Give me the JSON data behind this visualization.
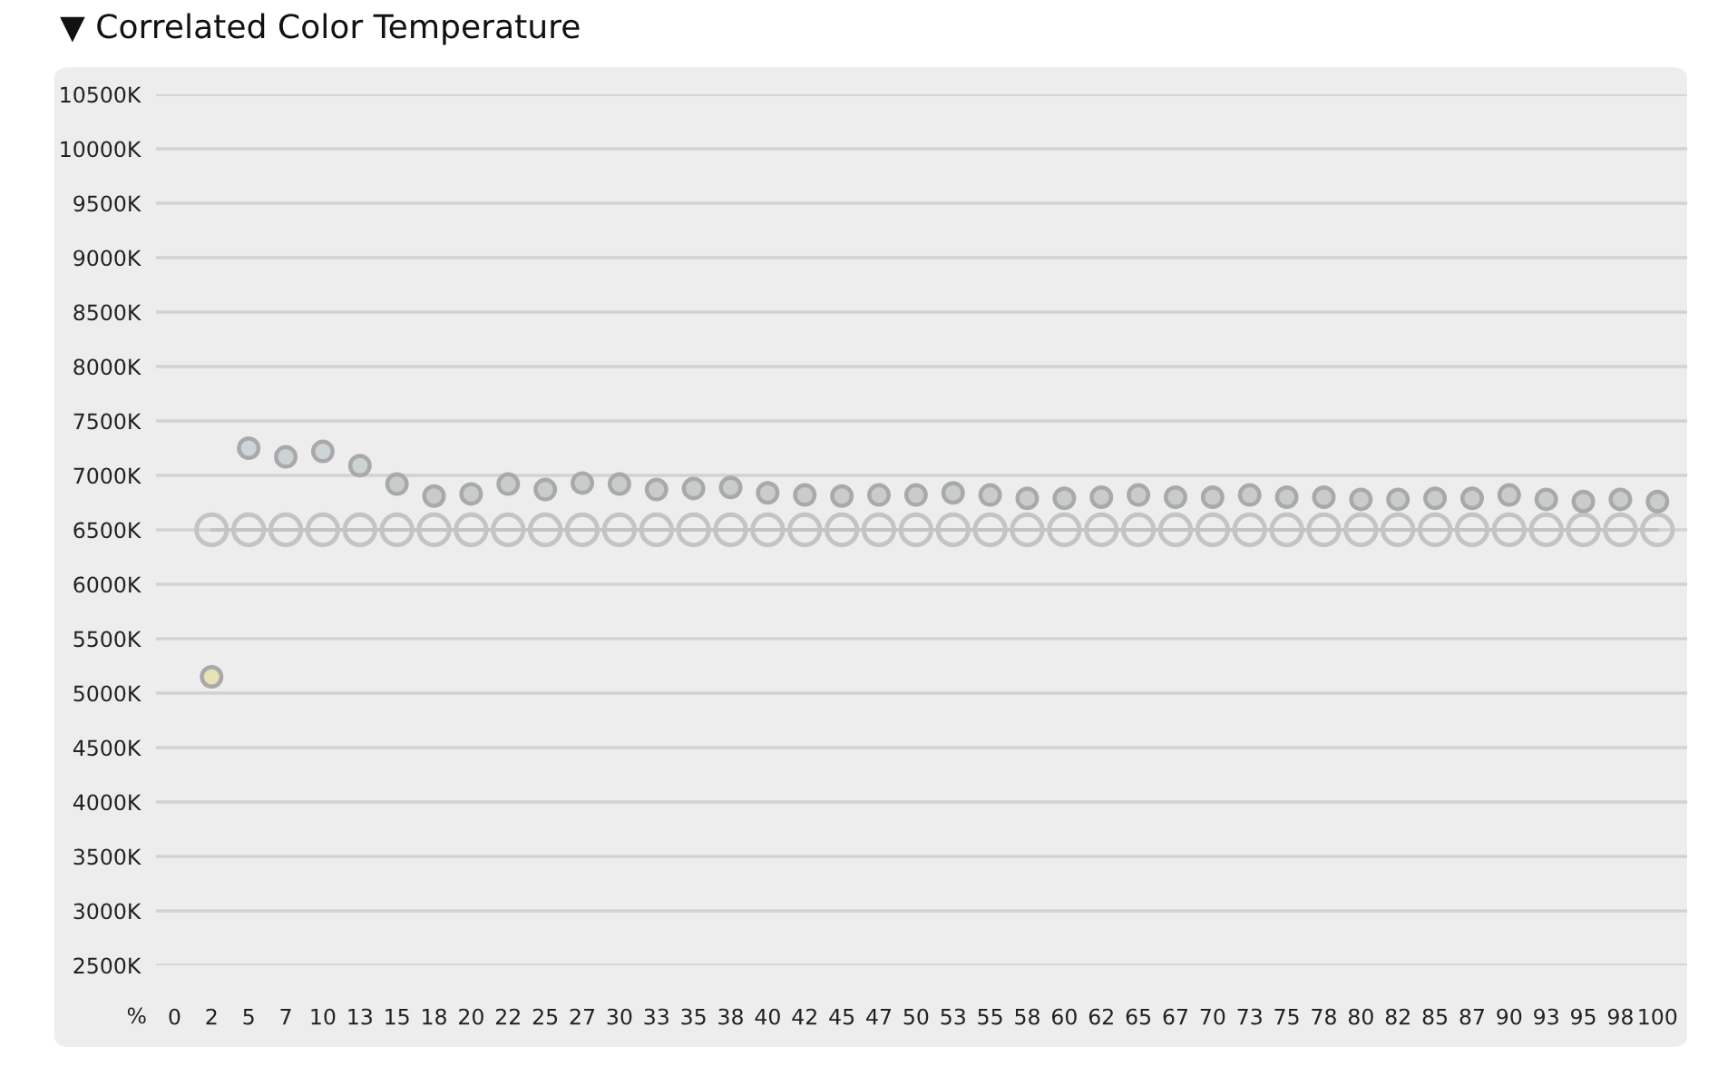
{
  "chart_data": {
    "type": "scatter",
    "title": "▼ Correlated Color Temperature",
    "xlabel": "%",
    "categories": [
      "0",
      "2",
      "5",
      "7",
      "10",
      "13",
      "15",
      "18",
      "20",
      "22",
      "25",
      "27",
      "30",
      "33",
      "35",
      "38",
      "40",
      "42",
      "45",
      "47",
      "50",
      "53",
      "55",
      "58",
      "60",
      "62",
      "65",
      "67",
      "70",
      "73",
      "75",
      "78",
      "80",
      "82",
      "85",
      "87",
      "90",
      "93",
      "95",
      "98",
      "100"
    ],
    "series": [
      {
        "type": "line",
        "color": "#c4c4c4",
        "marker": "circle",
        "line_style": "solid",
        "values": [
          null,
          6500,
          6500,
          6500,
          6500,
          6500,
          6500,
          6500,
          6500,
          6500,
          6500,
          6500,
          6500,
          6500,
          6500,
          6500,
          6500,
          6500,
          6500,
          6500,
          6500,
          6500,
          6500,
          6500,
          6500,
          6500,
          6500,
          6500,
          6500,
          6500,
          6500,
          6500,
          6500,
          6500,
          6500,
          6500,
          6500,
          6500,
          6500,
          6500,
          6500
        ]
      },
      {
        "color": "#c8cfd2",
        "marker": "circle",
        "colors": [
          "#c8cfd2",
          "#e9e0b4",
          "#ccd6d8",
          "#cdd3d5",
          "#cdd4d6",
          "#cdd2d3",
          "#c8cccd",
          "#c8cbcc",
          "#c8cccd",
          "#c8cccd",
          "#c8cccd",
          "#c8cccd",
          "#c8cccd",
          "#c8cccd",
          "#c8cccd",
          "#c8cccd",
          "#c8cccd",
          "#c8cccd",
          "#c8cccd",
          "#c8cccd",
          "#c8cccd",
          "#c8cccd",
          "#c8cccd",
          "#c8cccd",
          "#c8cccd",
          "#c8cccd",
          "#c8cccd",
          "#c8cccd",
          "#c8cccd",
          "#c8cccd",
          "#c8cccd",
          "#c8cccd",
          "#c8cccd",
          "#c8cccd",
          "#c8cccd",
          "#c8cccd",
          "#c8cccd",
          "#c8cccd",
          "#c8cccd",
          "#c8cccd",
          "#c8cccd"
        ],
        "values": [
          null,
          5150,
          7250,
          7170,
          7220,
          7090,
          6920,
          6810,
          6830,
          6920,
          6870,
          6930,
          6920,
          6870,
          6880,
          6890,
          6840,
          6820,
          6810,
          6820,
          6820,
          6840,
          6820,
          6790,
          6790,
          6800,
          6820,
          6800,
          6800,
          6820,
          6800,
          6800,
          6780,
          6780,
          6790,
          6790,
          6820,
          6780,
          6760,
          6780,
          6760
        ]
      }
    ],
    "ylim": [
      2500,
      10500
    ],
    "yticks": [
      {
        "value": 2500,
        "label": "2500K"
      },
      {
        "value": 3000,
        "label": "3000K"
      },
      {
        "value": 3500,
        "label": "3500K"
      },
      {
        "value": 4000,
        "label": "4000K"
      },
      {
        "value": 4500,
        "label": "4500K"
      },
      {
        "value": 5000,
        "label": "5000K"
      },
      {
        "value": 5500,
        "label": "5500K"
      },
      {
        "value": 6000,
        "label": "6000K"
      },
      {
        "value": 6500,
        "label": "6500K"
      },
      {
        "value": 7000,
        "label": "7000K"
      },
      {
        "value": 7500,
        "label": "7500K"
      },
      {
        "value": 8000,
        "label": "8000K"
      },
      {
        "value": 8500,
        "label": "8500K"
      },
      {
        "value": 9000,
        "label": "9000K"
      },
      {
        "value": 9500,
        "label": "9500K"
      },
      {
        "value": 10000,
        "label": "10000K"
      },
      {
        "value": 10500,
        "label": "10500K"
      }
    ],
    "grid": "y"
  }
}
